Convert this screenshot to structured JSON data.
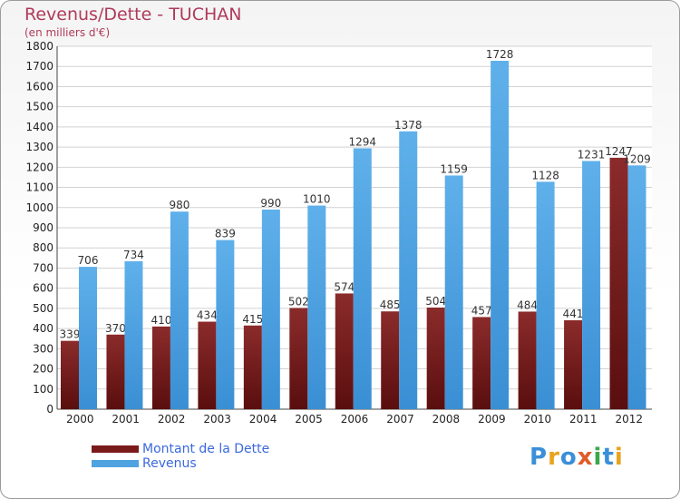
{
  "chart_data": {
    "type": "bar",
    "title": "Revenus/Dette - TUCHAN",
    "subtitle": "(en milliers d'€)",
    "categories": [
      "2000",
      "2001",
      "2002",
      "2003",
      "2004",
      "2005",
      "2006",
      "2007",
      "2008",
      "2009",
      "2010",
      "2011",
      "2012"
    ],
    "series": [
      {
        "name": "Montant de la Dette",
        "values": [
          339,
          370,
          410,
          434,
          415,
          502,
          574,
          485,
          504,
          457,
          484,
          441,
          1247
        ]
      },
      {
        "name": "Revenus",
        "values": [
          706,
          734,
          980,
          839,
          990,
          1010,
          1294,
          1378,
          1159,
          1728,
          1128,
          1231,
          1209
        ]
      }
    ],
    "ylim": [
      0,
      1800
    ],
    "yticks": [
      0,
      100,
      200,
      300,
      400,
      500,
      600,
      700,
      800,
      900,
      1000,
      1100,
      1200,
      1300,
      1400,
      1500,
      1600,
      1700,
      1800
    ],
    "grid": true,
    "legend": "bottom-left"
  },
  "colors": {
    "dette": "#7a1a1a",
    "dette_light": "#8b2b2b",
    "revenus": "#4fa3e0",
    "title": "#b03a5b",
    "legend_text": "#3a68e0"
  },
  "logo": {
    "text": "Proxiti",
    "letters": [
      "P",
      "r",
      "o",
      "x",
      "i",
      "t",
      "i"
    ],
    "letter_colors": [
      "#3a8fd8",
      "#e9a31c",
      "#3a8fd8",
      "#e05a2a",
      "#3aa84a",
      "#3a8fd8",
      "#e9a31c"
    ]
  }
}
